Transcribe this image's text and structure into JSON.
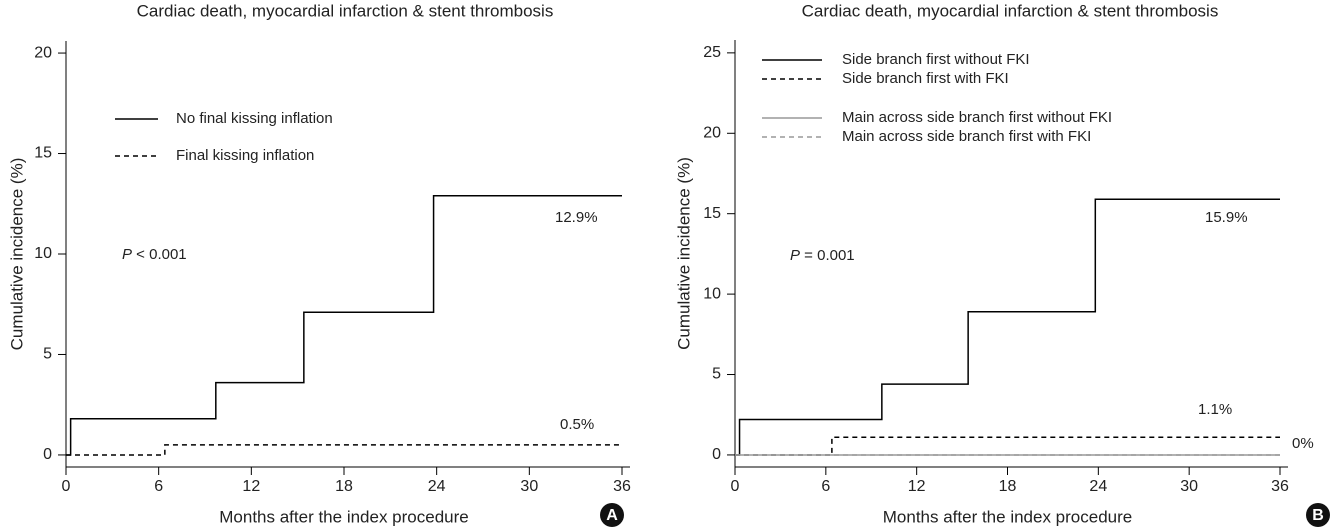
{
  "chart_data": [
    {
      "type": "line",
      "title": "Cardiac death, myocardial infarction & stent thrombosis",
      "x_label": "Months after the index procedure",
      "y_label": "Cumulative incidence (%)",
      "xlim": [
        0,
        36
      ],
      "ylim": [
        -0.6,
        20.6
      ],
      "xticks": [
        0,
        6,
        12,
        18,
        24,
        30,
        36
      ],
      "yticks": [
        0,
        5,
        10,
        15,
        20
      ],
      "series": [
        {
          "name": "No final kissing inflation",
          "color": "#000000",
          "dash": false,
          "x": [
            0,
            0.3,
            0.3,
            9.7,
            9.7,
            15.4,
            15.4,
            23.8,
            23.8,
            36
          ],
          "values": [
            0,
            0,
            1.8,
            1.8,
            3.6,
            3.6,
            7.1,
            7.1,
            12.9,
            12.9
          ]
        },
        {
          "name": "Final kissing inflation",
          "color": "#000000",
          "dash": true,
          "x": [
            0,
            6.4,
            6.4,
            36
          ],
          "values": [
            0,
            0,
            0.5,
            0.5
          ]
        }
      ],
      "annotations": [
        "P < 0.001",
        "12.9%",
        "0.5%"
      ],
      "panel_label": "A"
    },
    {
      "type": "line",
      "title": "Cardiac death, myocardial infarction & stent thrombosis",
      "x_label": "Months after the index procedure",
      "y_label": "Cumulative incidence (%)",
      "xlim": [
        0,
        36
      ],
      "ylim": [
        -0.75,
        25.8
      ],
      "xticks": [
        0,
        6,
        12,
        18,
        24,
        30,
        36
      ],
      "yticks": [
        0,
        5,
        10,
        15,
        20,
        25
      ],
      "series": [
        {
          "name": "Side branch first without FKI",
          "color": "#000000",
          "dash": false,
          "x": [
            0,
            0.3,
            0.3,
            9.7,
            9.7,
            15.4,
            15.4,
            23.8,
            23.8,
            36
          ],
          "values": [
            0,
            0,
            2.2,
            2.2,
            4.4,
            4.4,
            8.9,
            8.9,
            15.9,
            15.9
          ]
        },
        {
          "name": "Side branch first with FKI",
          "color": "#000000",
          "dash": true,
          "x": [
            0,
            6.4,
            6.4,
            36
          ],
          "values": [
            0,
            0,
            1.1,
            1.1
          ]
        },
        {
          "name": "Main across side branch first without FKI",
          "color": "#999999",
          "dash": false,
          "x": [
            0,
            36
          ],
          "values": [
            0,
            0
          ]
        },
        {
          "name": "Main across side branch first with FKI",
          "color": "#999999",
          "dash": true,
          "x": [
            0,
            36
          ],
          "values": [
            0,
            0
          ]
        }
      ],
      "annotations": [
        "P = 0.001",
        "15.9%",
        "1.1%",
        "0%"
      ],
      "panel_label": "B"
    }
  ]
}
